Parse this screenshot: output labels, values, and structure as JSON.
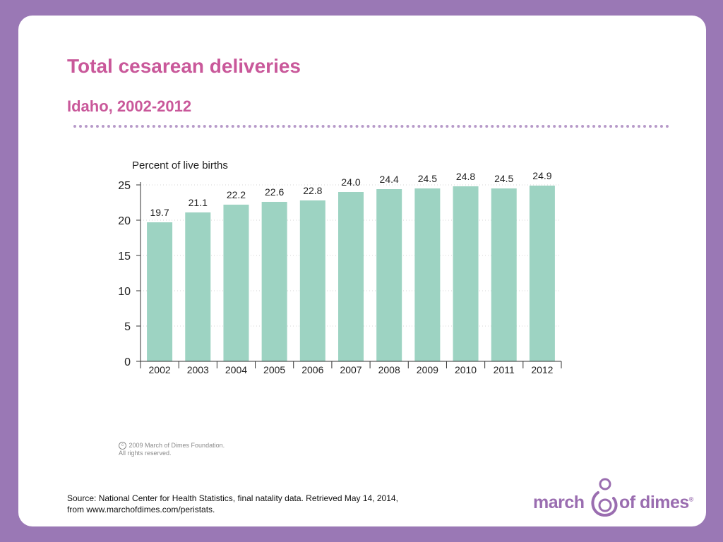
{
  "slide": {
    "title": "Total cesarean deliveries",
    "subtitle": "Idaho, 2002-2012",
    "copyright_line1": "2009 March of Dimes Foundation.",
    "copyright_line2": "All rights reserved.",
    "source_line1": "Source: National Center for Health Statistics, final natality data. Retrieved May 14, 2014,",
    "source_line2": "from www.marchofdimes.com/peristats."
  },
  "logo": {
    "word1": "march",
    "word2": "of dimes",
    "mark": "®"
  },
  "colors": {
    "background": "#9a78b5",
    "title": "#c9589a",
    "bar": "#9dd3c2",
    "logo": "#9a6db0"
  },
  "chart_data": {
    "type": "bar",
    "ylabel": "Percent of live births",
    "categories": [
      "2002",
      "2003",
      "2004",
      "2005",
      "2006",
      "2007",
      "2008",
      "2009",
      "2010",
      "2011",
      "2012"
    ],
    "values": [
      19.7,
      21.1,
      22.2,
      22.6,
      22.8,
      24.0,
      24.4,
      24.5,
      24.8,
      24.5,
      24.9
    ],
    "value_labels": [
      "19.7",
      "21.1",
      "22.2",
      "22.6",
      "22.8",
      "24.0",
      "24.4",
      "24.5",
      "24.8",
      "24.5",
      "24.9"
    ],
    "ylim": [
      0,
      25
    ],
    "yticks": [
      0,
      5,
      10,
      15,
      20,
      25
    ],
    "grid": true
  }
}
